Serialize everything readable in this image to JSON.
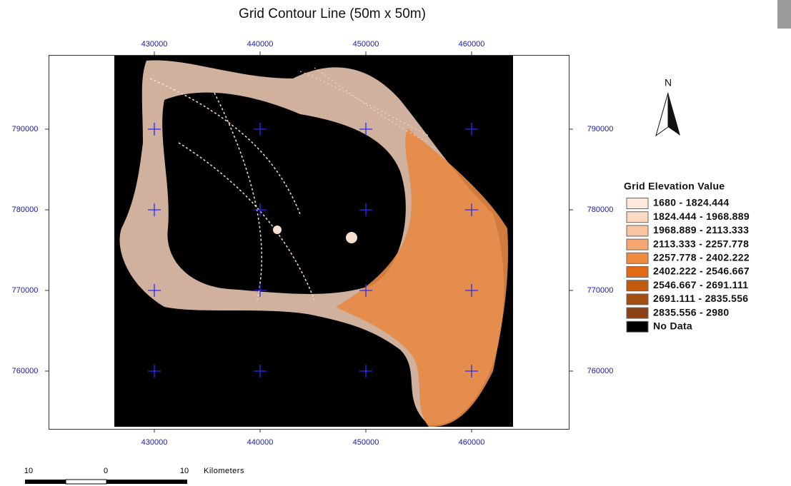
{
  "title": "Grid Contour Line (50m x 50m)",
  "map": {
    "xlim": [
      420000,
      469190
    ],
    "ylim": [
      752830,
      799200
    ],
    "xticks": [
      430000,
      440000,
      450000,
      460000
    ],
    "yticks": [
      790000,
      780000,
      770000,
      760000
    ]
  },
  "legend": {
    "title": "Grid Elevation Value",
    "items": [
      {
        "label": "1680 - 1824.444",
        "color": "#fde8dc"
      },
      {
        "label": "1824.444 - 1968.889",
        "color": "#fcd9c3"
      },
      {
        "label": "1968.889 - 2113.333",
        "color": "#f9c4a2"
      },
      {
        "label": "2113.333 - 2257.778",
        "color": "#f7a870"
      },
      {
        "label": "2257.778 - 2402.222",
        "color": "#f08a3e"
      },
      {
        "label": "2402.222 - 2546.667",
        "color": "#e06b14"
      },
      {
        "label": "2546.667 - 2691.111",
        "color": "#c25a10"
      },
      {
        "label": "2691.111 - 2835.556",
        "color": "#a44e12"
      },
      {
        "label": "2835.556 - 2980",
        "color": "#8a4214"
      },
      {
        "label": "No Data",
        "color": "#000000"
      }
    ]
  },
  "north": "N",
  "scale_bar": {
    "labels": [
      "10",
      "0",
      "10"
    ],
    "unit": "Kilometers"
  }
}
